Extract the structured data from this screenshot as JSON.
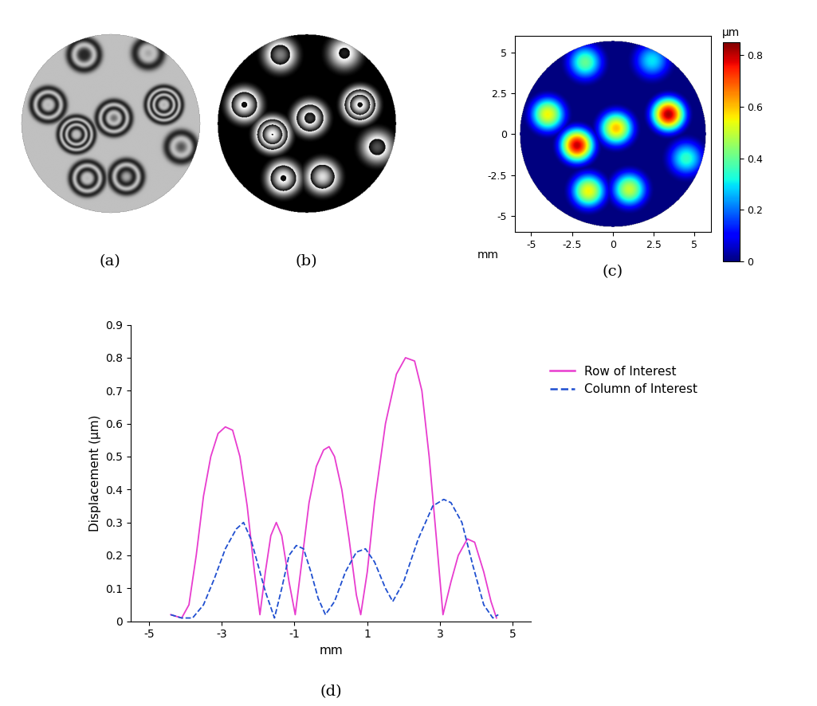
{
  "chart_data": [
    {
      "type": "fringe_image",
      "label": "(a)",
      "fringe_step": 0.266
    },
    {
      "type": "wrapped_phase",
      "label": "(b)",
      "fringe_step": 0.266
    },
    {
      "type": "heatmap",
      "label": "(c)",
      "xlabel": "mm",
      "xlim": [
        -6,
        6
      ],
      "ylim": [
        -6,
        6
      ],
      "xticks": [
        -5,
        -2.5,
        0,
        2.5,
        5
      ],
      "yticks": [
        -5,
        -2.5,
        0,
        2.5,
        5
      ],
      "aperture_radius": 5.7,
      "peak_radius": 1.6,
      "peaks": [
        {
          "x": -4.0,
          "y": 1.2,
          "value": 0.55
        },
        {
          "x": -1.7,
          "y": 4.4,
          "value": 0.4
        },
        {
          "x": 2.4,
          "y": 4.5,
          "value": 0.3
        },
        {
          "x": -2.2,
          "y": -0.7,
          "value": 0.8
        },
        {
          "x": 0.2,
          "y": 0.35,
          "value": 0.6
        },
        {
          "x": 3.4,
          "y": 1.2,
          "value": 0.82
        },
        {
          "x": 4.5,
          "y": -1.5,
          "value": 0.35
        },
        {
          "x": -1.5,
          "y": -3.5,
          "value": 0.55
        },
        {
          "x": 1.0,
          "y": -3.4,
          "value": 0.5
        }
      ],
      "colorbar": {
        "label": "μm",
        "range": [
          0,
          0.85
        ],
        "ticks": [
          0,
          0.2,
          0.4,
          0.6,
          0.8
        ]
      }
    },
    {
      "type": "line",
      "label": "(d)",
      "xlabel": "mm",
      "ylabel": "Displacement (μm)",
      "xlim": [
        -5.5,
        5.5
      ],
      "ylim": [
        0,
        0.9
      ],
      "xticks": [
        -5,
        -3,
        -1,
        1,
        3,
        5
      ],
      "yticks": [
        0,
        0.1,
        0.2,
        0.3,
        0.4,
        0.5,
        0.6,
        0.7,
        0.8,
        0.9
      ],
      "legend": "right",
      "series": [
        {
          "name": "Row of Interest",
          "color": "#e83ccf",
          "line_style": "solid",
          "x": [
            -4.4,
            -4.1,
            -3.9,
            -3.7,
            -3.5,
            -3.3,
            -3.1,
            -2.9,
            -2.7,
            -2.5,
            -2.3,
            -2.1,
            -1.95,
            -1.8,
            -1.65,
            -1.5,
            -1.35,
            -1.15,
            -0.98,
            -0.8,
            -0.6,
            -0.4,
            -0.2,
            -0.05,
            0.1,
            0.3,
            0.5,
            0.7,
            0.82,
            1.0,
            1.2,
            1.5,
            1.8,
            2.05,
            2.3,
            2.5,
            2.7,
            2.9,
            3.08,
            3.3,
            3.5,
            3.75,
            3.95,
            4.2,
            4.4,
            4.55
          ],
          "values": [
            0.02,
            0.01,
            0.05,
            0.2,
            0.38,
            0.5,
            0.57,
            0.59,
            0.58,
            0.5,
            0.35,
            0.15,
            0.02,
            0.15,
            0.26,
            0.3,
            0.26,
            0.12,
            0.02,
            0.18,
            0.36,
            0.47,
            0.52,
            0.53,
            0.5,
            0.4,
            0.25,
            0.08,
            0.02,
            0.15,
            0.36,
            0.6,
            0.75,
            0.8,
            0.79,
            0.7,
            0.5,
            0.25,
            0.02,
            0.12,
            0.2,
            0.25,
            0.24,
            0.15,
            0.06,
            0.01
          ]
        },
        {
          "name": "Column of Interest",
          "color": "#1f4fd0",
          "line_style": "dashed",
          "x": [
            -4.4,
            -4.1,
            -3.8,
            -3.5,
            -3.2,
            -2.9,
            -2.6,
            -2.4,
            -2.2,
            -2.0,
            -1.8,
            -1.55,
            -1.35,
            -1.15,
            -0.95,
            -0.75,
            -0.55,
            -0.35,
            -0.15,
            0.1,
            0.4,
            0.7,
            0.95,
            1.2,
            1.5,
            1.7,
            2.0,
            2.4,
            2.8,
            3.1,
            3.3,
            3.6,
            3.9,
            4.2,
            4.45,
            4.6
          ],
          "values": [
            0.02,
            0.01,
            0.01,
            0.05,
            0.13,
            0.22,
            0.28,
            0.3,
            0.25,
            0.17,
            0.09,
            0.01,
            0.1,
            0.2,
            0.23,
            0.22,
            0.15,
            0.07,
            0.02,
            0.06,
            0.15,
            0.21,
            0.22,
            0.18,
            0.1,
            0.06,
            0.12,
            0.25,
            0.35,
            0.37,
            0.36,
            0.3,
            0.17,
            0.05,
            0.01,
            0.02
          ]
        }
      ]
    }
  ]
}
